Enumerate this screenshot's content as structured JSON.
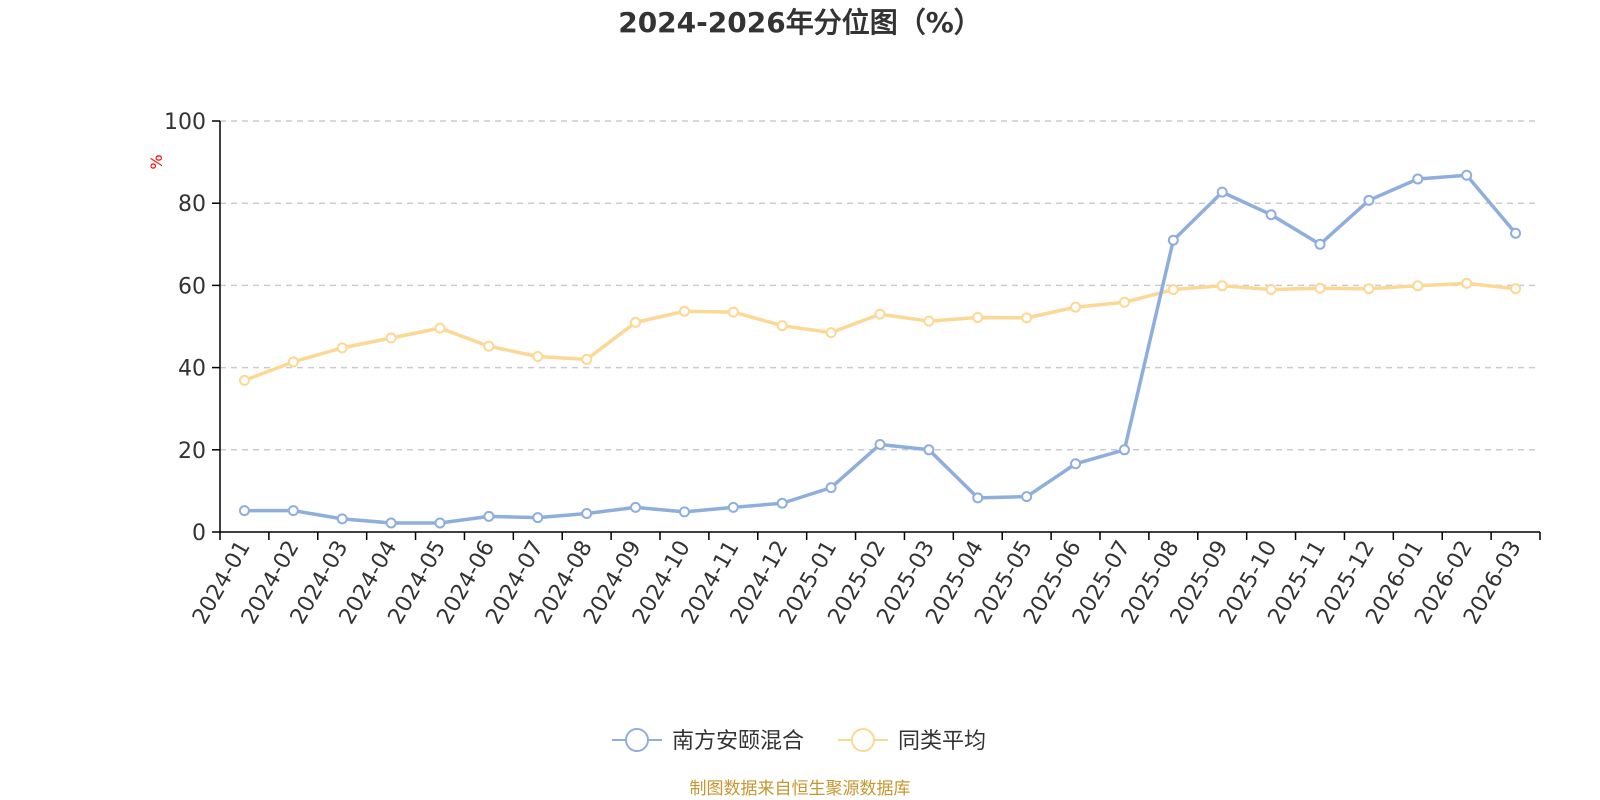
{
  "title": "2024-2026年分位图（%）",
  "source": "制图数据来自恒生聚源数据库",
  "colors": {
    "series1": "#8eaedd",
    "series2": "#fcd894",
    "grid": "#cccccc",
    "axis": "#000000",
    "text": "#333333",
    "unit": "#ff0000",
    "source": "#c8962e"
  },
  "chart_data": {
    "type": "line",
    "title": "2024-2026年分位图（%）",
    "ylabel": "%",
    "xlabel": "",
    "ylim": [
      0,
      100
    ],
    "yticks": [
      0,
      20,
      40,
      60,
      80,
      100
    ],
    "grid": true,
    "legend_position": "bottom-center",
    "categories": [
      "2024-01",
      "2024-02",
      "2024-03",
      "2024-04",
      "2024-05",
      "2024-06",
      "2024-07",
      "2024-08",
      "2024-09",
      "2024-10",
      "2024-11",
      "2024-12",
      "2025-01",
      "2025-02",
      "2025-03",
      "2025-04",
      "2025-05",
      "2025-06",
      "2025-07",
      "2025-08",
      "2025-09",
      "2025-10",
      "2025-11",
      "2025-12",
      "2026-01",
      "2026-02",
      "2026-03"
    ],
    "series": [
      {
        "name": "南方安颐混合",
        "values": [
          5.2,
          5.2,
          3.2,
          2.2,
          2.2,
          3.8,
          3.5,
          4.5,
          6.0,
          4.9,
          6.0,
          7.0,
          10.8,
          21.3,
          20.0,
          8.3,
          8.6,
          16.6,
          20.0,
          71.0,
          82.7,
          77.2,
          70.0,
          80.7,
          85.9,
          86.8,
          72.7
        ]
      },
      {
        "name": "同类平均",
        "values": [
          36.9,
          41.4,
          44.8,
          47.2,
          49.6,
          45.2,
          42.7,
          42.0,
          51.0,
          53.7,
          53.5,
          50.2,
          48.5,
          53.0,
          51.3,
          52.2,
          52.1,
          54.7,
          55.9,
          59.0,
          59.9,
          59.0,
          59.3,
          59.2,
          59.9,
          60.5,
          59.2
        ]
      }
    ]
  }
}
